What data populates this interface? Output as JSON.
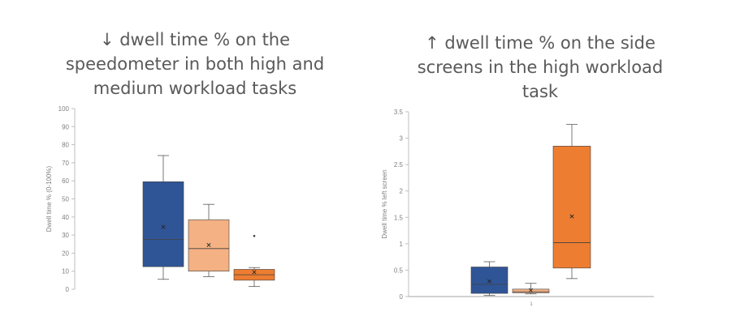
{
  "chart_data": [
    {
      "type": "box",
      "title": "↓ dwell time % on the\nspeedometer in both high and\nmedium workload tasks",
      "ylabel": "Dwell time % (0-100%)",
      "ylim": [
        0,
        100
      ],
      "yticks": [
        0,
        10,
        20,
        30,
        40,
        50,
        60,
        70,
        80,
        90,
        100
      ],
      "ytick_labels": [
        "0",
        "10",
        "20",
        "30",
        "40",
        "50",
        "60",
        "70",
        "80",
        "90",
        "100"
      ],
      "xlabel": "",
      "grid": false,
      "boxes": [
        {
          "whisker_low": 5.5,
          "q1": 12.5,
          "median": 27.5,
          "q3": 59.5,
          "whisker_high": 74,
          "mean": 34.5,
          "outliers": [],
          "color": "#2F5597"
        },
        {
          "whisker_low": 7,
          "q1": 10,
          "median": 22.5,
          "q3": 38.5,
          "whisker_high": 47,
          "mean": 24.5,
          "outliers": [],
          "color": "#F4B183"
        },
        {
          "whisker_low": 1.5,
          "q1": 5,
          "median": 8,
          "q3": 11,
          "whisker_high": 12,
          "mean": 9.5,
          "outliers": [
            29.5
          ],
          "color": "#ED7D31"
        }
      ]
    },
    {
      "type": "box",
      "title": "↑  dwell time % on the side\nscreens in the high workload\ntask",
      "ylabel": "Dwell time % left screen",
      "ylim": [
        0,
        3.5
      ],
      "yticks": [
        0,
        0.5,
        1,
        1.5,
        2,
        2.5,
        3,
        3.5
      ],
      "ytick_labels": [
        "0",
        "0.5",
        "1",
        "1.5",
        "2",
        "2.5",
        "3",
        "3.5"
      ],
      "xlabel": "",
      "xtick_labels": [
        "1"
      ],
      "grid": false,
      "boxes": [
        {
          "whisker_low": 0.02,
          "q1": 0.06,
          "median": 0.23,
          "q3": 0.56,
          "whisker_high": 0.66,
          "mean": 0.29,
          "outliers": [],
          "color": "#2F5597"
        },
        {
          "whisker_low": 0.05,
          "q1": 0.07,
          "median": 0.09,
          "q3": 0.14,
          "whisker_high": 0.25,
          "mean": 0.12,
          "outliers": [],
          "color": "#F4B183"
        },
        {
          "whisker_low": 0.34,
          "q1": 0.54,
          "median": 1.02,
          "q3": 2.85,
          "whisker_high": 3.26,
          "mean": 1.52,
          "outliers": [],
          "color": "#ED7D31"
        }
      ]
    }
  ]
}
